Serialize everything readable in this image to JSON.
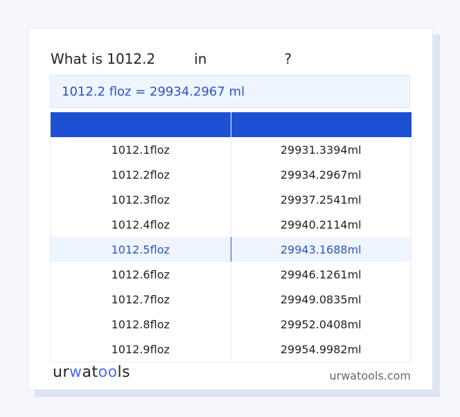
{
  "title": {
    "prefix": "What is 1012.2",
    "middle": "in",
    "suffix": "?"
  },
  "result": "1012.2 floz = 29934.2967 ml",
  "table": {
    "headers": [
      "",
      ""
    ],
    "rows": [
      [
        "1012.1floz",
        "29931.3394ml"
      ],
      [
        "1012.2floz",
        "29934.2967ml"
      ],
      [
        "1012.3floz",
        "29937.2541ml"
      ],
      [
        "1012.4floz",
        "29940.2114ml"
      ],
      [
        "1012.5floz",
        "29943.1688ml"
      ],
      [
        "1012.6floz",
        "29946.1261ml"
      ],
      [
        "1012.7floz",
        "29949.0835ml"
      ],
      [
        "1012.8floz",
        "29952.0408ml"
      ],
      [
        "1012.9floz",
        "29954.9982ml"
      ]
    ],
    "highlighted_row": 4
  },
  "footer": {
    "logo": "urwatools",
    "site": "urwatools.com"
  },
  "colors": {
    "accent": "#1e50d4",
    "highlight_text": "#2a55c4",
    "highlight_bg": "#eef5fe"
  }
}
